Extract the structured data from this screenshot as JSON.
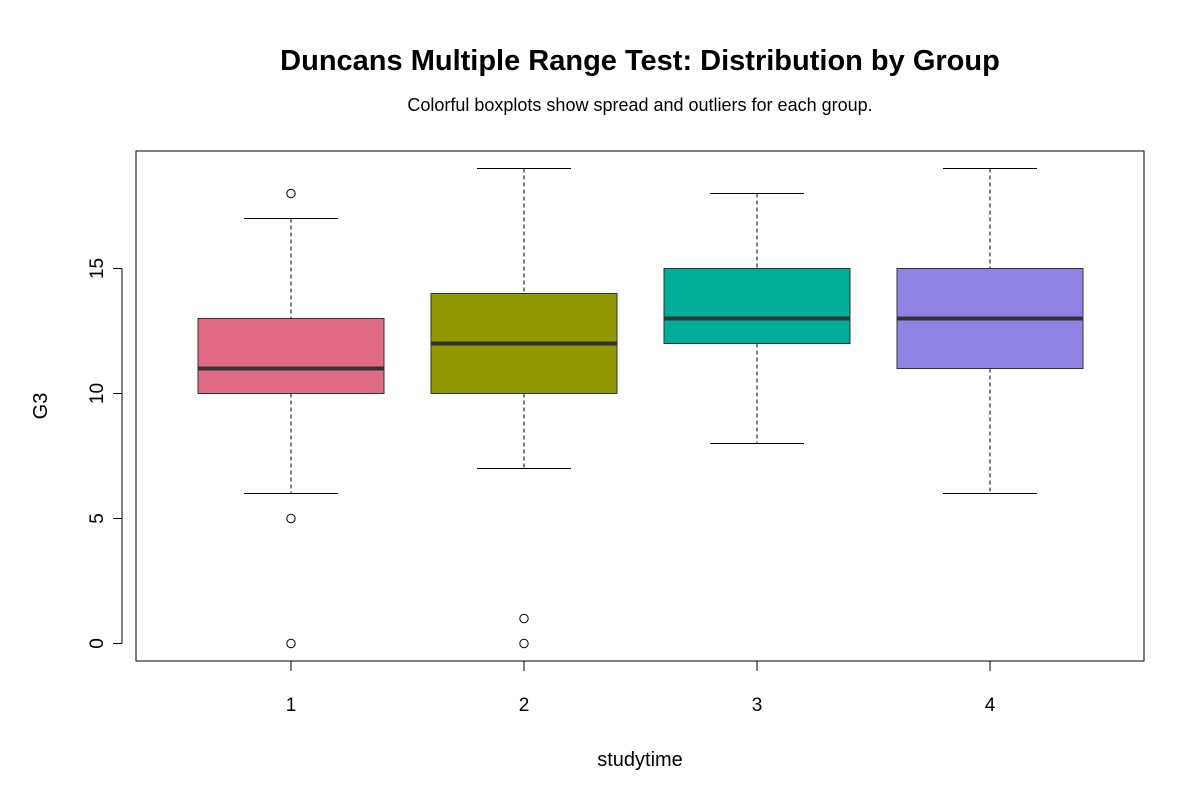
{
  "chart_data": {
    "type": "boxplot",
    "title": "Duncans Multiple Range Test: Distribution by Group",
    "subtitle": "Colorful boxplots show spread and outliers for each group.",
    "xlabel": "studytime",
    "ylabel": "G3",
    "ylim": [
      -0.7,
      19.7
    ],
    "yticks": [
      0,
      5,
      10,
      15
    ],
    "grid": false,
    "categories": [
      "1",
      "2",
      "3",
      "4"
    ],
    "groups": [
      {
        "name": "1",
        "color": "#E16A86",
        "whisker_low": 6,
        "q1": 10,
        "median": 11,
        "q3": 13,
        "whisker_high": 17,
        "outliers": [
          18,
          5,
          0
        ]
      },
      {
        "name": "2",
        "color": "#909800",
        "whisker_low": 7,
        "q1": 10,
        "median": 12,
        "q3": 14,
        "whisker_high": 19,
        "outliers": [
          1,
          0
        ]
      },
      {
        "name": "3",
        "color": "#00AD9A",
        "whisker_low": 8,
        "q1": 12,
        "median": 13,
        "q3": 15,
        "whisker_high": 18,
        "outliers": []
      },
      {
        "name": "4",
        "color": "#9183E6",
        "whisker_low": 6,
        "q1": 11,
        "median": 13,
        "q3": 15,
        "whisker_high": 19,
        "outliers": []
      }
    ]
  }
}
